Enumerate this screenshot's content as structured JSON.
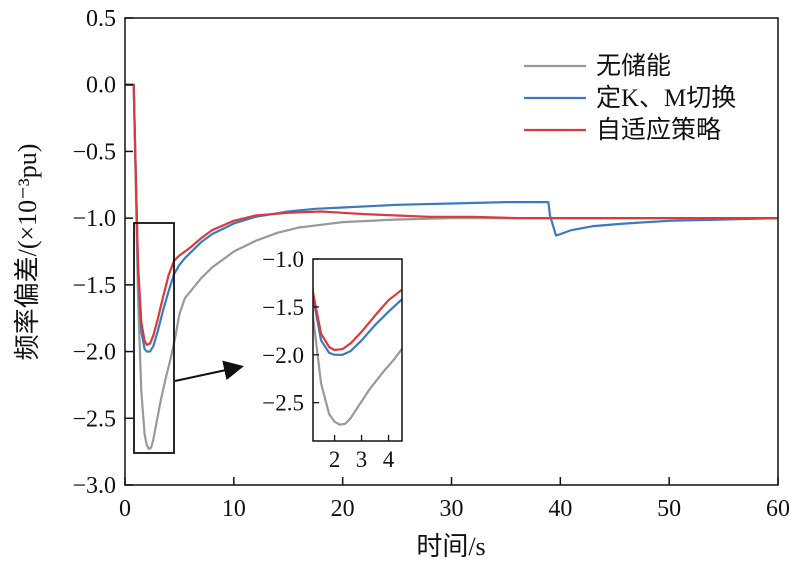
{
  "chart_data": {
    "type": "line",
    "xlabel": "时间/s",
    "ylabel": "频率偏差/(×10⁻³pu)",
    "xlim": [
      0,
      60
    ],
    "ylim": [
      -3.0,
      0.5
    ],
    "xticks": [
      "0",
      "10",
      "20",
      "30",
      "40",
      "50",
      "60"
    ],
    "yticks": [
      "0.5",
      "0.0",
      "−0.5",
      "−1.0",
      "−1.5",
      "−2.0",
      "−2.5",
      "−3.0"
    ],
    "legend_position": "top-right",
    "series": [
      {
        "name": "无储能",
        "color": "#999999",
        "x": [
          0,
          0.8,
          1.0,
          1.2,
          1.5,
          1.8,
          2.0,
          2.2,
          2.4,
          2.6,
          2.9,
          3.3,
          3.8,
          4.2,
          4.6,
          5.0,
          5.5,
          6.0,
          7.0,
          8.0,
          10.0,
          12.0,
          14.0,
          16.0,
          18.0,
          20.0,
          25.0,
          30.0,
          35.0,
          40.0,
          45.0,
          50.0,
          55.0,
          60.0
        ],
        "y": [
          0.0,
          0.0,
          -0.8,
          -1.6,
          -2.3,
          -2.62,
          -2.7,
          -2.73,
          -2.72,
          -2.66,
          -2.53,
          -2.36,
          -2.18,
          -2.05,
          -1.9,
          -1.72,
          -1.6,
          -1.55,
          -1.45,
          -1.37,
          -1.25,
          -1.17,
          -1.11,
          -1.07,
          -1.05,
          -1.03,
          -1.01,
          -1.0,
          -1.0,
          -1.0,
          -1.0,
          -1.0,
          -1.0,
          -1.0
        ]
      },
      {
        "name": "定K、M切换",
        "color": "#3a7bbf",
        "x": [
          0,
          0.8,
          1.0,
          1.2,
          1.5,
          1.8,
          2.0,
          2.3,
          2.6,
          3.0,
          3.5,
          4.0,
          4.5,
          5.0,
          5.5,
          6.0,
          7.0,
          8.0,
          10.0,
          12.0,
          15.0,
          17.5,
          20.0,
          25.0,
          30.0,
          35.0,
          38.9,
          39.05,
          39.6,
          40.0,
          41.0,
          43.0,
          46.0,
          50.0,
          55.0,
          60.0
        ],
        "y": [
          0.0,
          0.0,
          -0.7,
          -1.4,
          -1.85,
          -1.98,
          -2.0,
          -2.0,
          -1.96,
          -1.85,
          -1.69,
          -1.55,
          -1.42,
          -1.35,
          -1.3,
          -1.26,
          -1.18,
          -1.12,
          -1.04,
          -0.99,
          -0.95,
          -0.93,
          -0.92,
          -0.9,
          -0.89,
          -0.88,
          -0.88,
          -0.98,
          -1.13,
          -1.12,
          -1.09,
          -1.06,
          -1.04,
          -1.02,
          -1.01,
          -1.0
        ]
      },
      {
        "name": "自适应策略",
        "color": "#d93a3a",
        "x": [
          0,
          0.8,
          1.0,
          1.2,
          1.5,
          1.8,
          2.0,
          2.3,
          2.6,
          3.0,
          3.5,
          4.0,
          4.5,
          5.0,
          5.5,
          6.0,
          7.0,
          8.0,
          10.0,
          12.0,
          15.0,
          18.0,
          20.0,
          22.0,
          25.0,
          28.0,
          32.0,
          36.0,
          40.0,
          50.0,
          60.0
        ],
        "y": [
          0.0,
          0.0,
          -0.7,
          -1.35,
          -1.78,
          -1.92,
          -1.95,
          -1.94,
          -1.88,
          -1.76,
          -1.59,
          -1.43,
          -1.32,
          -1.28,
          -1.25,
          -1.22,
          -1.15,
          -1.09,
          -1.02,
          -0.98,
          -0.96,
          -0.95,
          -0.96,
          -0.97,
          -0.98,
          -0.99,
          -0.99,
          -1.0,
          -1.0,
          -1.0,
          -1.0
        ]
      }
    ],
    "inset": {
      "xlim": [
        1.2,
        4.5
      ],
      "ylim": [
        -2.9,
        -1.0
      ],
      "xticks": [
        "2",
        "3",
        "4"
      ],
      "yticks": [
        "−1.0",
        "−1.5",
        "−2.0",
        "−2.5"
      ]
    }
  }
}
